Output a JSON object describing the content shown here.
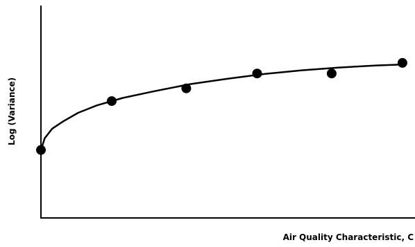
{
  "chart_data": {
    "type": "scatter",
    "title": "",
    "xlabel": "Air Quality Characteristic, C",
    "ylabel": "Log (Variance)",
    "grid": false,
    "legend": "none",
    "xlim": [
      0,
      10
    ],
    "ylim": [
      0,
      10
    ],
    "points": [
      {
        "x": 0.0,
        "y": 3.2
      },
      {
        "x": 1.9,
        "y": 5.5
      },
      {
        "x": 3.9,
        "y": 6.1
      },
      {
        "x": 5.8,
        "y": 6.8
      },
      {
        "x": 7.8,
        "y": 6.8
      },
      {
        "x": 9.7,
        "y": 7.3
      }
    ],
    "fit_curve": {
      "shape": "concave-increasing",
      "points": [
        {
          "x": 0.0,
          "y": 3.2
        },
        {
          "x": 0.1,
          "y": 3.75
        },
        {
          "x": 0.3,
          "y": 4.2
        },
        {
          "x": 0.6,
          "y": 4.55
        },
        {
          "x": 1.0,
          "y": 4.95
        },
        {
          "x": 1.5,
          "y": 5.3
        },
        {
          "x": 2.2,
          "y": 5.65
        },
        {
          "x": 3.0,
          "y": 5.95
        },
        {
          "x": 4.0,
          "y": 6.3
        },
        {
          "x": 5.0,
          "y": 6.55
        },
        {
          "x": 6.0,
          "y": 6.78
        },
        {
          "x": 7.0,
          "y": 6.95
        },
        {
          "x": 8.0,
          "y": 7.08
        },
        {
          "x": 9.0,
          "y": 7.18
        },
        {
          "x": 9.7,
          "y": 7.22
        }
      ]
    },
    "colors": {
      "points": "#000000",
      "curve": "#000000",
      "axes": "#000000"
    }
  }
}
